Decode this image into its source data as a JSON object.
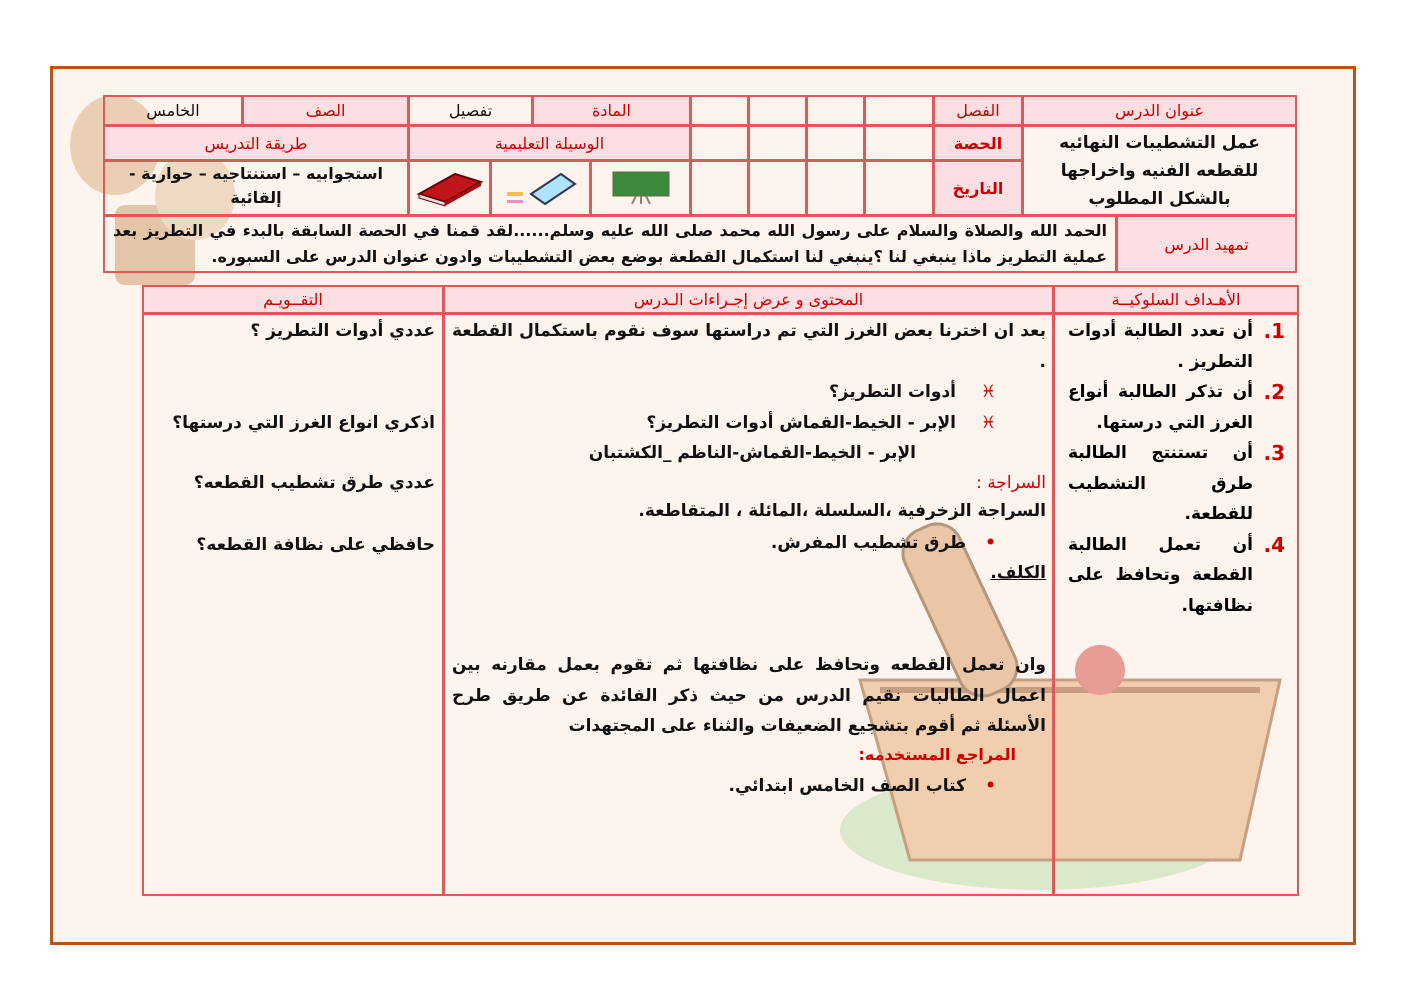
{
  "header": {
    "lesson_title_label": "عنوان الدرس",
    "lesson_title": "عمل التشطيبات النهائيه للقطعه الفنيه واخراجها  بالشكل المطلوب",
    "class_label": "الفصل",
    "period_label": "الحصة",
    "date_label": "التاريخ",
    "subject_label": "المادة",
    "subject_value": "تفصيل",
    "grade_label": "الصف",
    "grade_value": "الخامس",
    "aids_label": "الوسيلة التعليمية",
    "aids_icons": [
      "blackboard-icon",
      "eraser-chalk-icon",
      "book-icon"
    ],
    "method_label": "طريقة التدريس",
    "method_value": "استجوابيه – استنتاجيه – حوارية - إلقائية",
    "intro_label": "تمهيد الدرس",
    "intro_text": "الحمد الله والصلاة والسلام على رسول الله محمد صلى الله عليه وسلم......لقد قمنا في الحصة السابقة بالبدء في التطريز بعد عملية التطريز ماذا ينبغي لنا ؟ينبغي لنا استكمال القطعة بوضع بعض التشطيبات وادون عنوان الدرس على السبوره."
  },
  "table": {
    "headers": {
      "objectives": "الأهـداف السلوكيــة",
      "content": "المحتوى و عرض   إجـراءات الـدرس",
      "evaluation": "التقــويـم"
    },
    "objectives": [
      {
        "num": "1.",
        "text": "أن تعدد الطالبة أدوات التطريز ."
      },
      {
        "num": "2.",
        "text": "أن تذكر الطالبة أنواع الغرز التي درستها."
      },
      {
        "num": "3.",
        "text": "أن تستنتج الطالبة طرق التشطيب للقطعة."
      },
      {
        "num": "4.",
        "text": "أن تعمل الطالبة القطعة وتحافظ على نظافتها."
      }
    ],
    "content": {
      "p1": "بعد ان اخترنا بعض الغرز التي تم دراستها سوف نقوم باستكمال القطعة .",
      "q1": "أدوات التطريز؟",
      "q2": "الإبر - الخيط-القماش أدوات التطريز؟",
      "a2": "الإبر - الخيط-القماش-الناظم _الكشتبان",
      "seraja_label": "السراجة :",
      "seraja_text": "السراجة الزخرفية ،السلسلة ،المائلة ، المتقاطعة.",
      "bullet1": "طرق تشطيب المفرش.",
      "kalaf": "الكلف.",
      "p2": "وان تعمل القطعه وتحافظ على نظافتها ثم تقوم بعمل مقارنه بين اعمال الطالبات نقيم الدرس من حيث ذكر الفائدة عن طريق طرح الأسئلة ثم أقوم بتشجيع الضعيفات والثناء على المجتهدات",
      "refs_label": "المراجع المستخدمه:",
      "ref1": "كتاب الصف الخامس ابتدائي."
    },
    "evaluation": [
      "عددي أدوات التطريز ؟",
      "اذكري انواع الغرز التي درستها؟",
      "عددي طرق تشطيب القطعه؟",
      "حافظي على نظافة القطعه؟"
    ]
  },
  "colors": {
    "frame": "#b5541f",
    "border": "#de5a5a",
    "header_fill": "#fbdfe2",
    "header_text": "#cc0000"
  }
}
